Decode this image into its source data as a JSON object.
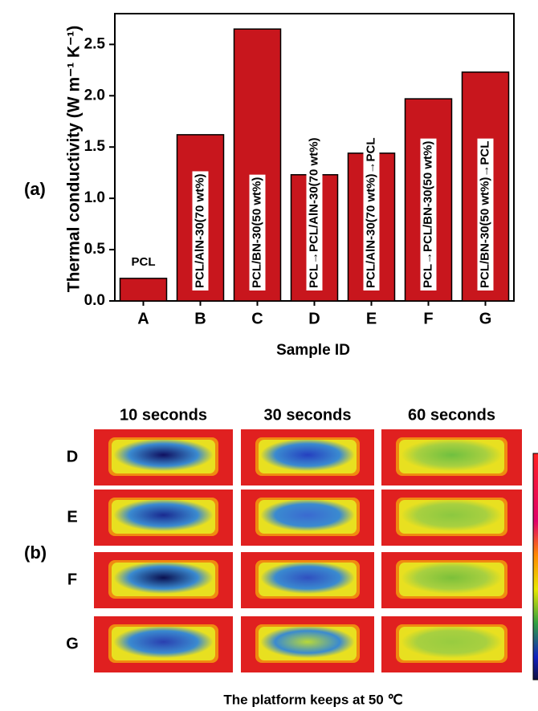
{
  "chart_data": {
    "type": "bar",
    "panel_label": "(a)",
    "xlabel": "Sample ID",
    "ylabel": "Thermal conductivity (W m⁻¹ K⁻¹)",
    "categories": [
      "A",
      "B",
      "C",
      "D",
      "E",
      "F",
      "G"
    ],
    "values": [
      0.22,
      1.62,
      2.65,
      1.23,
      1.44,
      1.97,
      2.23
    ],
    "bar_labels": [
      "PCL",
      "PCL/AlN-30(70 wt%)",
      "PCL/BN-30(50 wt%)",
      "PCL→PCL/AlN-30(70 wt%)",
      "PCL/AlN-30(70 wt%)→PCL",
      "PCL→PCL/BN-30(50 wt%)",
      "PCL/BN-30(50 wt%)→PCL"
    ],
    "color": "#c8161d",
    "ylim": [
      0,
      2.8
    ],
    "yticks": [
      {
        "value": 0,
        "label": "0.0"
      },
      0.5,
      {
        "value": 1,
        "label": "1.0"
      },
      1.5,
      {
        "value": 2,
        "label": "2.0"
      },
      2.5
    ]
  },
  "thermal_panel": {
    "label": "(b)",
    "columns": [
      "10 seconds",
      "30 seconds",
      "60 seconds"
    ],
    "rows": [
      "D",
      "E",
      "F",
      "G"
    ],
    "caption": "The platform keeps at 50 ℃"
  }
}
